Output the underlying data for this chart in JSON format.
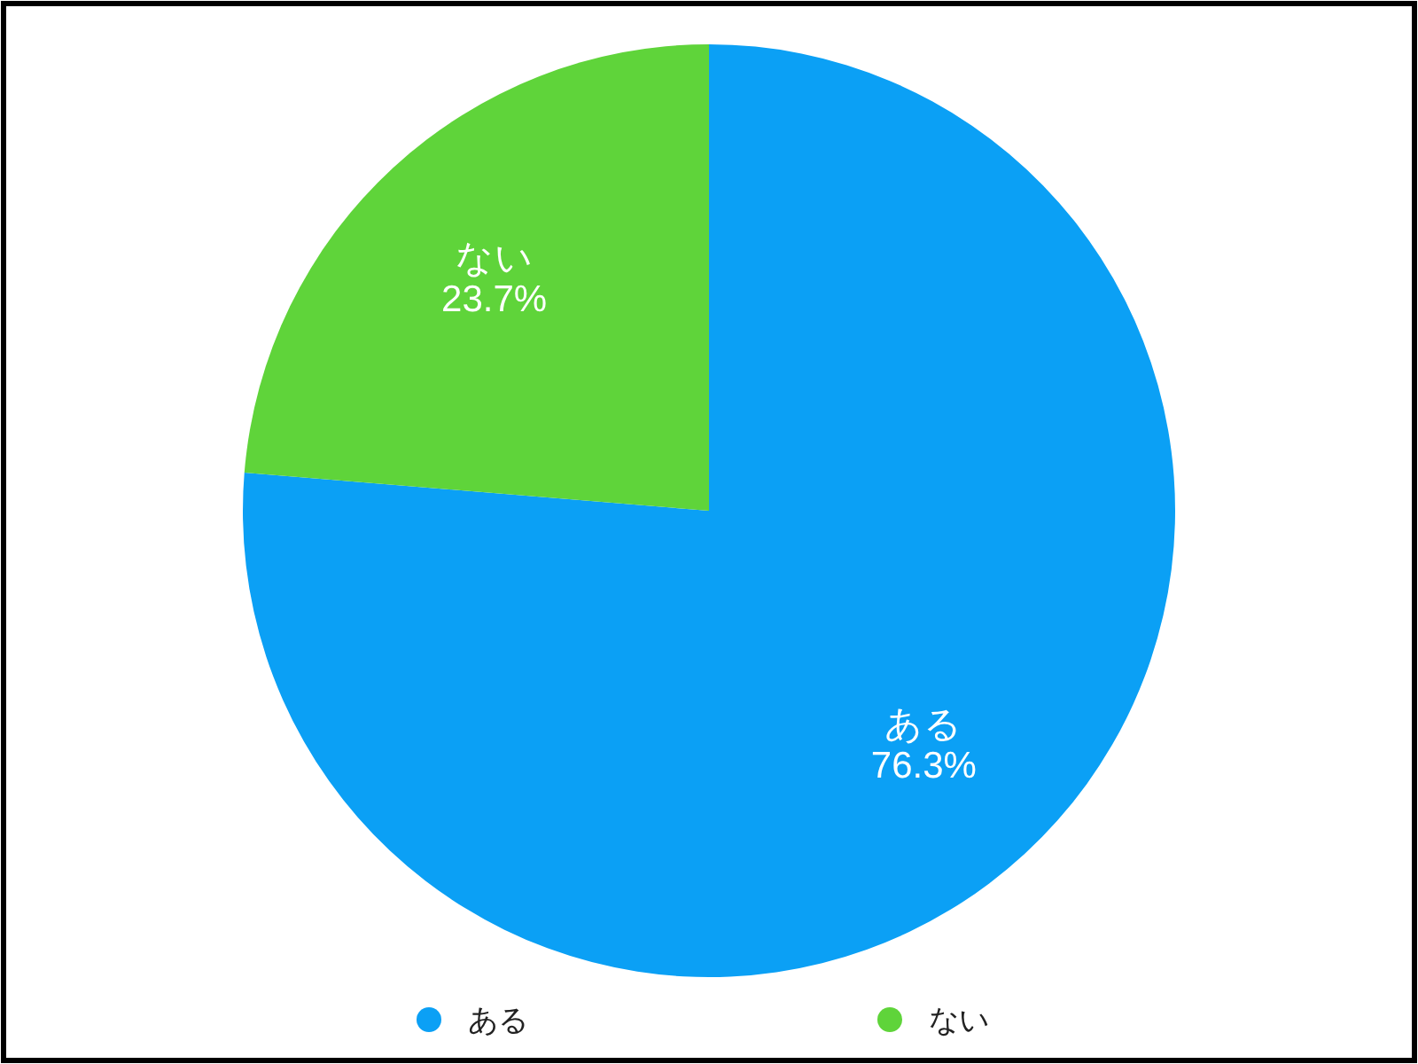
{
  "chart_data": {
    "type": "pie",
    "categories": [
      "ある",
      "ない"
    ],
    "values": [
      76.3,
      23.7
    ],
    "colors": [
      "#0ba0f5",
      "#5fd43a"
    ],
    "value_labels": [
      "76.3%",
      "23.7%"
    ],
    "legend": "bottom"
  }
}
